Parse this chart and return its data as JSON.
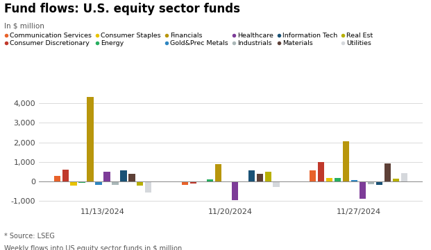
{
  "title": "Fund flows: U.S. equity sector funds",
  "subtitle": "In $ million",
  "source": "* Source: LSEG",
  "footnote": "Weekly flows into US equity sector funds in $ million",
  "dates": [
    "11/13/2024",
    "11/20/2024",
    "11/27/2024"
  ],
  "sectors": [
    "Communication Services",
    "Consumer Discretionary",
    "Consumer Staples",
    "Energy",
    "Financials",
    "Gold&Prec Metals",
    "Healthcare",
    "Industrials",
    "Information Tech",
    "Materials",
    "Real Est",
    "Utilities"
  ],
  "colors": [
    "#e8622a",
    "#c0392b",
    "#e8c300",
    "#27ae60",
    "#b8960c",
    "#2e86c1",
    "#7d3c98",
    "#aab7b8",
    "#1a5276",
    "#5d4037",
    "#b8b000",
    "#d5d8dc"
  ],
  "values": {
    "11/13/2024": [
      280,
      620,
      -220,
      -70,
      4320,
      -170,
      500,
      -170,
      580,
      380,
      -200,
      -580
    ],
    "11/20/2024": [
      -160,
      -90,
      0,
      120,
      870,
      0,
      -950,
      0,
      560,
      400,
      490,
      -280
    ],
    "11/27/2024": [
      580,
      1000,
      180,
      180,
      2060,
      60,
      -870,
      -150,
      -180,
      940,
      160,
      430
    ]
  },
  "ylim": [
    -1200,
    4800
  ],
  "yticks": [
    -1000,
    0,
    1000,
    2000,
    3000,
    4000
  ],
  "background_color": "#ffffff"
}
